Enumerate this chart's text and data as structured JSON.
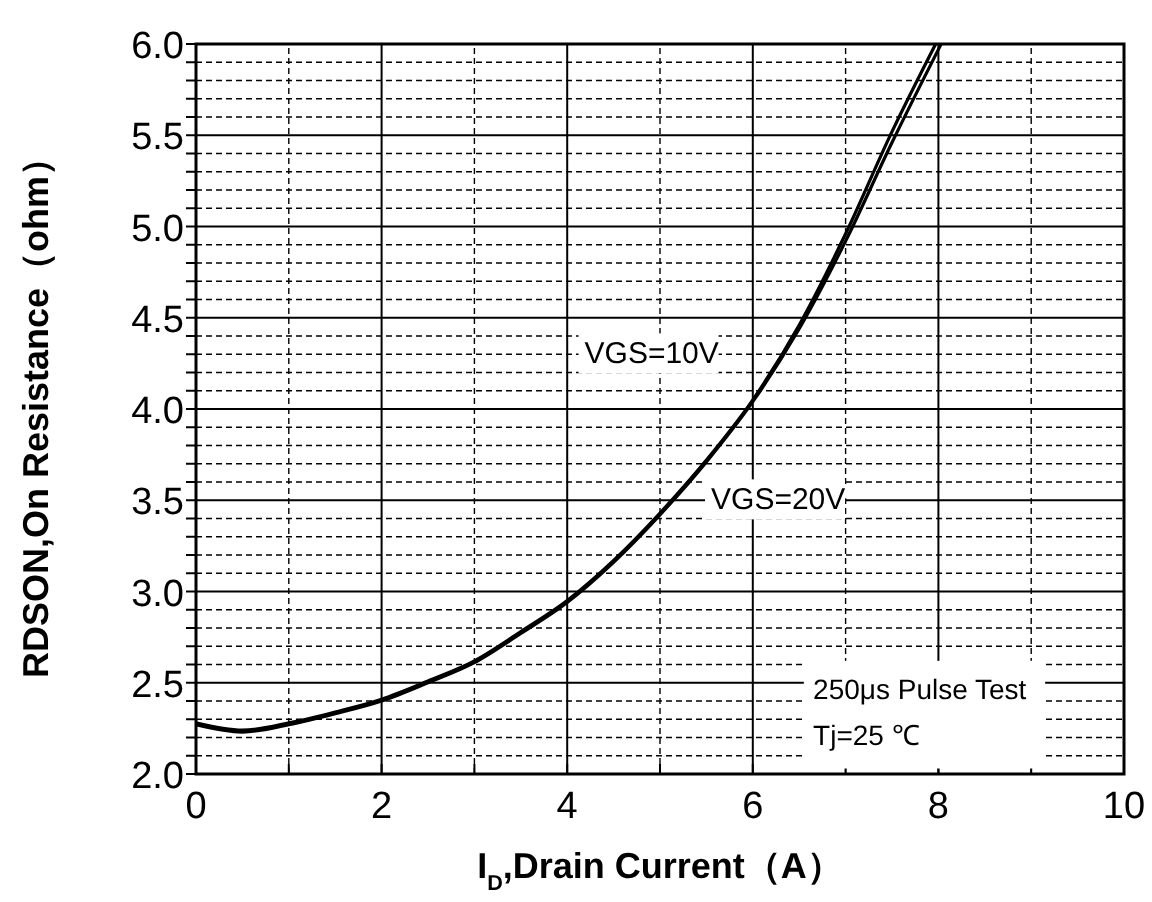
{
  "chart_data": {
    "type": "line",
    "xlabel": "I$_{D}$,Drain Current（A）",
    "ylabel": "RDSON,On Resistance（ohm）",
    "xlim": [
      0,
      10
    ],
    "xticks": [
      0,
      {
        "value": 1,
        "label": null
      },
      2,
      {
        "value": 3,
        "label": null
      },
      4,
      {
        "value": 5,
        "label": null
      },
      6,
      {
        "value": 7,
        "label": null
      },
      8,
      {
        "value": 9,
        "label": null
      },
      10
    ],
    "ylim": [
      2.0,
      6.0
    ],
    "yticks": [
      {
        "value": 2.0,
        "label": "2.0"
      },
      {
        "value": 2.1,
        "label": null
      },
      {
        "value": 2.2,
        "label": null
      },
      {
        "value": 2.3,
        "label": null
      },
      {
        "value": 2.4,
        "label": null
      },
      {
        "value": 2.5,
        "label": "2.5"
      },
      {
        "value": 2.6,
        "label": null
      },
      {
        "value": 2.7,
        "label": null
      },
      {
        "value": 2.8,
        "label": null
      },
      {
        "value": 2.9,
        "label": null
      },
      {
        "value": 3.0,
        "label": "3.0"
      },
      {
        "value": 3.1,
        "label": null
      },
      {
        "value": 3.2,
        "label": null
      },
      {
        "value": 3.3,
        "label": null
      },
      {
        "value": 3.4,
        "label": null
      },
      {
        "value": 3.5,
        "label": "3.5"
      },
      {
        "value": 3.6,
        "label": null
      },
      {
        "value": 3.7,
        "label": null
      },
      {
        "value": 3.8,
        "label": null
      },
      {
        "value": 3.9,
        "label": null
      },
      {
        "value": 4.0,
        "label": "4.0"
      },
      {
        "value": 4.1,
        "label": null
      },
      {
        "value": 4.2,
        "label": null
      },
      {
        "value": 4.3,
        "label": null
      },
      {
        "value": 4.4,
        "label": null
      },
      {
        "value": 4.5,
        "label": "4.5"
      },
      {
        "value": 4.6,
        "label": null
      },
      {
        "value": 4.7,
        "label": null
      },
      {
        "value": 4.8,
        "label": null
      },
      {
        "value": 4.9,
        "label": null
      },
      {
        "value": 5.0,
        "label": "5.0"
      },
      {
        "value": 5.1,
        "label": null
      },
      {
        "value": 5.2,
        "label": null
      },
      {
        "value": 5.3,
        "label": null
      },
      {
        "value": 5.4,
        "label": null
      },
      {
        "value": 5.5,
        "label": "5.5"
      },
      {
        "value": 5.6,
        "label": null
      },
      {
        "value": 5.7,
        "label": null
      },
      {
        "value": 5.8,
        "label": null
      },
      {
        "value": 5.9,
        "label": null
      },
      {
        "value": 6.0,
        "label": "6.0"
      }
    ],
    "grid": true,
    "marker": "none",
    "line_style": "solid",
    "series": [
      {
        "name": "VGS=10V",
        "color": "#000000",
        "x": [
          0,
          0.5,
          1,
          1.5,
          2,
          2.5,
          3,
          3.5,
          4,
          4.5,
          5,
          5.5,
          6,
          6.5,
          7,
          7.5,
          7.97
        ],
        "values": [
          2.28,
          2.24,
          2.28,
          2.34,
          2.41,
          2.51,
          2.62,
          2.78,
          2.95,
          3.17,
          3.43,
          3.72,
          4.05,
          4.46,
          4.96,
          5.52,
          6.0
        ]
      },
      {
        "name": "VGS=20V",
        "color": "#000000",
        "x": [
          0,
          0.5,
          1,
          1.5,
          2,
          2.5,
          3,
          3.5,
          4,
          4.5,
          5,
          5.5,
          6,
          6.5,
          7,
          7.5,
          8.03
        ],
        "values": [
          2.27,
          2.23,
          2.27,
          2.33,
          2.4,
          2.5,
          2.61,
          2.77,
          2.94,
          3.16,
          3.42,
          3.71,
          4.04,
          4.44,
          4.92,
          5.46,
          6.0
        ]
      }
    ],
    "annotations": [
      "250μs  Pulse Test",
      "Tj=25 ℃"
    ]
  }
}
